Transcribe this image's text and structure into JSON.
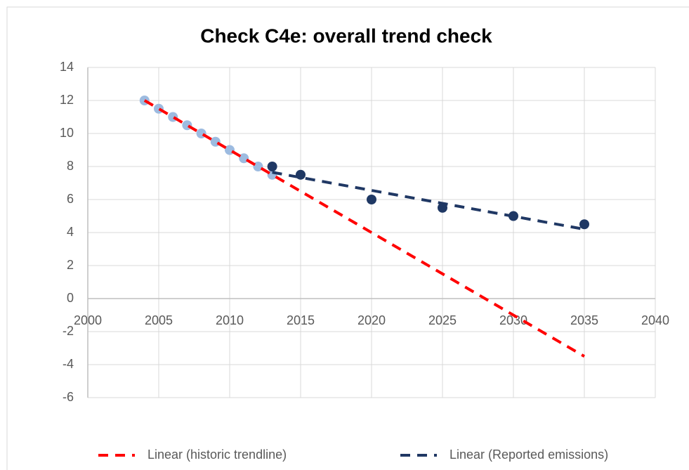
{
  "chart_data": {
    "type": "scatter",
    "title": "Check C4e: overall trend check",
    "series": [
      {
        "color": "#9dbbe0",
        "x": [
          2004,
          2005,
          2006,
          2007,
          2008,
          2009,
          2010,
          2011,
          2012,
          2013
        ],
        "values": [
          12,
          11.5,
          11,
          10.5,
          10,
          9.5,
          9,
          8.5,
          8,
          7.5
        ]
      },
      {
        "color": "#1f3864",
        "x": [
          2013,
          2015,
          2020,
          2025,
          2030,
          2035
        ],
        "values": [
          8,
          7.5,
          6,
          5.5,
          5,
          4.5
        ]
      }
    ],
    "trendlines": [
      {
        "name": "Linear (historic trendline)",
        "color": "#ff0000",
        "x": [
          2004,
          2035
        ],
        "values": [
          12,
          -3.5
        ]
      },
      {
        "name": "Linear (Reported emissions)",
        "color": "#203864",
        "x": [
          2013,
          2035
        ],
        "values": [
          7.65,
          4.2
        ]
      }
    ],
    "xlim": [
      2000,
      2040
    ],
    "xticks": [
      2000,
      2005,
      2010,
      2015,
      2020,
      2025,
      2030,
      2035,
      2040
    ],
    "ylim": [
      -6,
      14
    ],
    "yticks": [
      -6,
      -4,
      -2,
      0,
      2,
      4,
      6,
      8,
      10,
      12,
      14
    ],
    "grid": true,
    "legend": "bottom"
  }
}
